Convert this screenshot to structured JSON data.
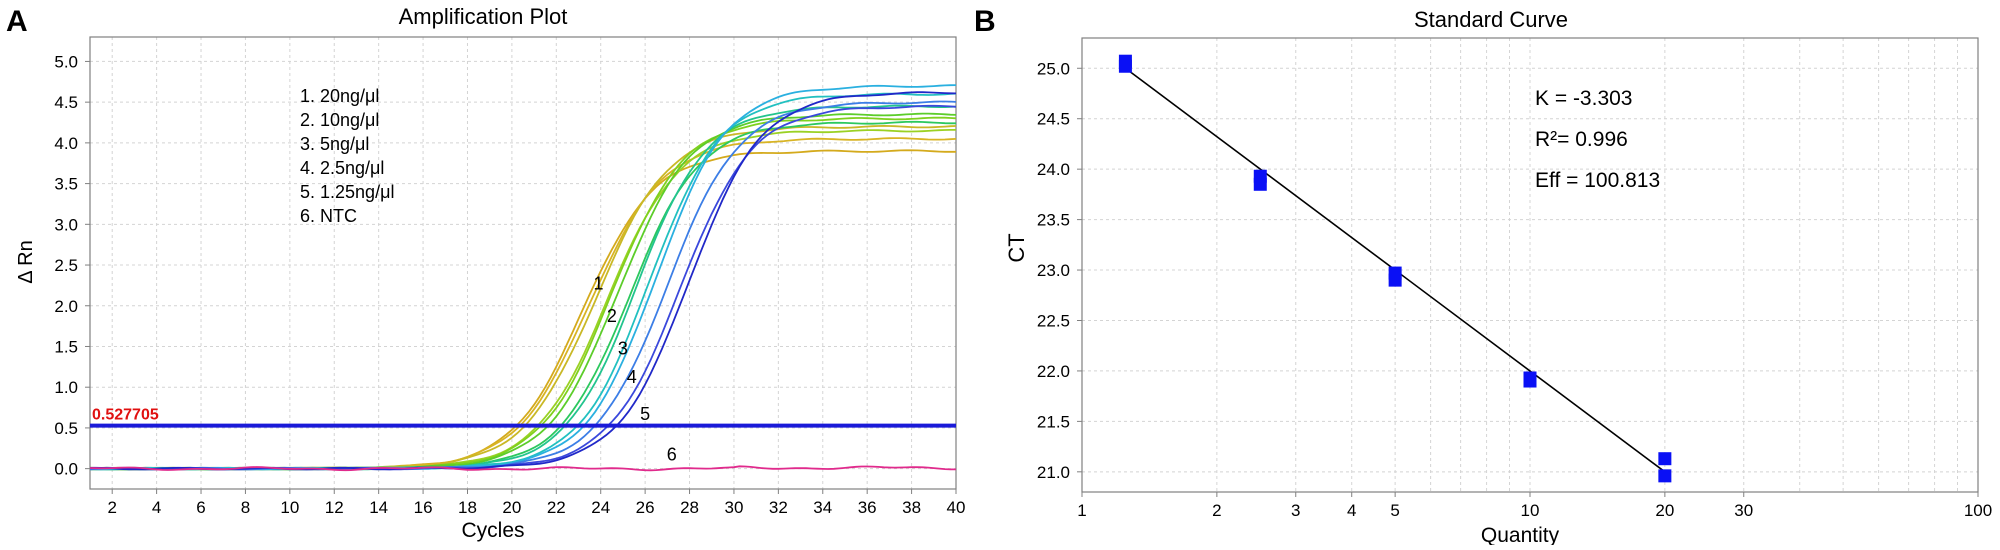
{
  "panel_labels": {
    "a": "A",
    "b": "B"
  },
  "colors": {
    "threshold": "#1a1ad8",
    "threshold_label": "#e01010",
    "ntc": "#e02a8c",
    "marker": "#0a10f5",
    "fit": "#000000",
    "grid": "#d4d4d4",
    "axis": "#808080"
  },
  "chart_data": [
    {
      "type": "line",
      "title": "Amplification Plot",
      "xlabel": "Cycles",
      "ylabel": "Δ Rn",
      "xlim": [
        1,
        40
      ],
      "ylim": [
        -0.25,
        5.3
      ],
      "xticks": [
        2,
        4,
        6,
        8,
        10,
        12,
        14,
        16,
        18,
        20,
        22,
        24,
        26,
        28,
        30,
        32,
        34,
        36,
        38,
        40
      ],
      "xtick_labels": [
        "2",
        "4",
        "6",
        "8",
        "10",
        "12",
        "14",
        "16",
        "18",
        "20",
        "22",
        "24",
        "26",
        "28",
        "30",
        "32",
        "34",
        "36",
        "38",
        "40"
      ],
      "yticks": [
        0,
        0.5,
        1,
        1.5,
        2,
        2.5,
        3,
        3.5,
        4,
        4.5,
        5
      ],
      "ytick_labels": [
        "0.0",
        "0.5",
        "1.0",
        "1.5",
        "2.0",
        "2.5",
        "3.0",
        "3.5",
        "4.0",
        "4.5",
        "5.0"
      ],
      "threshold": 0.527705,
      "threshold_label": "0.527705",
      "legend": [
        "1. 20ng/μl",
        "2. 10ng/μl",
        "3. 5ng/μl",
        "4. 2.5ng/μl",
        "5. 1.25ng/μl",
        "6. NTC"
      ],
      "series": [
        {
          "name": "1. 20ng/μl rep1",
          "color": "#d4aa1c",
          "plateau": 3.9,
          "midpoint": 23.2,
          "slope": 0.62
        },
        {
          "name": "1. 20ng/μl rep2",
          "color": "#d8b424",
          "plateau": 4.05,
          "midpoint": 23.5,
          "slope": 0.6
        },
        {
          "name": "1. 20ng/μl rep3",
          "color": "#c9b826",
          "plateau": 4.2,
          "midpoint": 23.8,
          "slope": 0.6
        },
        {
          "name": "2. 10ng/μl rep1",
          "color": "#9bd124",
          "plateau": 4.15,
          "midpoint": 24.3,
          "slope": 0.62
        },
        {
          "name": "2. 10ng/μl rep2",
          "color": "#7fd11e",
          "plateau": 4.3,
          "midpoint": 24.5,
          "slope": 0.62
        },
        {
          "name": "2. 10ng/μl rep3",
          "color": "#5ccd2a",
          "plateau": 4.35,
          "midpoint": 24.8,
          "slope": 0.62
        },
        {
          "name": "3. 5ng/μl rep1",
          "color": "#2cc85e",
          "plateau": 4.25,
          "midpoint": 25.3,
          "slope": 0.63
        },
        {
          "name": "3. 5ng/μl rep2",
          "color": "#22c48e",
          "plateau": 4.45,
          "midpoint": 25.6,
          "slope": 0.63
        },
        {
          "name": "4. 2.5ng/μl rep1",
          "color": "#22c0c0",
          "plateau": 4.6,
          "midpoint": 26.2,
          "slope": 0.63
        },
        {
          "name": "4. 2.5ng/μl rep2",
          "color": "#2ab0e0",
          "plateau": 4.7,
          "midpoint": 26.5,
          "slope": 0.63
        },
        {
          "name": "4. 2.5ng/μl rep3",
          "color": "#3c7ee6",
          "plateau": 4.5,
          "midpoint": 27.0,
          "slope": 0.62
        },
        {
          "name": "5. 1.25ng/μl rep1",
          "color": "#3a48dc",
          "plateau": 4.45,
          "midpoint": 27.6,
          "slope": 0.62
        },
        {
          "name": "5. 1.25ng/μl rep2",
          "color": "#2028c8",
          "plateau": 4.62,
          "midpoint": 28.0,
          "slope": 0.62
        },
        {
          "name": "6. NTC",
          "color": "#e02a8c",
          "plateau": 0,
          "midpoint": 0,
          "slope": 0
        }
      ],
      "curve_labels": [
        {
          "text": "1",
          "x": 23.9,
          "y": 2.2
        },
        {
          "text": "2",
          "x": 24.5,
          "y": 1.8
        },
        {
          "text": "3",
          "x": 25.0,
          "y": 1.4
        },
        {
          "text": "4",
          "x": 25.4,
          "y": 1.05
        },
        {
          "text": "5",
          "x": 26.0,
          "y": 0.6
        },
        {
          "text": "6",
          "x": 27.2,
          "y": 0.1
        }
      ]
    },
    {
      "type": "scatter",
      "title": "Standard Curve",
      "xlabel": "Quantity",
      "ylabel": "CT",
      "xscale": "log",
      "xlim": [
        1,
        100
      ],
      "ylim": [
        20.8,
        25.3
      ],
      "xticks": [
        1,
        2,
        3,
        4,
        5,
        10,
        20,
        30,
        100
      ],
      "xtick_labels": [
        "1",
        "2",
        "3",
        "4",
        "5",
        "10",
        "20",
        "30",
        "100"
      ],
      "yticks": [
        21.0,
        21.5,
        22.0,
        22.5,
        23.0,
        23.5,
        24.0,
        24.5,
        25.0
      ],
      "ytick_labels": [
        "21.0",
        "21.5",
        "22.0",
        "22.5",
        "23.0",
        "23.5",
        "24.0",
        "24.5",
        "25.0"
      ],
      "points": [
        {
          "x": 1.25,
          "y": 25.07
        },
        {
          "x": 1.25,
          "y": 25.02
        },
        {
          "x": 2.5,
          "y": 23.93
        },
        {
          "x": 2.5,
          "y": 23.85
        },
        {
          "x": 5,
          "y": 22.97
        },
        {
          "x": 5,
          "y": 22.9
        },
        {
          "x": 10,
          "y": 21.93
        },
        {
          "x": 10,
          "y": 21.9
        },
        {
          "x": 20,
          "y": 21.13
        },
        {
          "x": 20,
          "y": 20.96
        }
      ],
      "fit": {
        "x1": 1.25,
        "y1": 25.0,
        "x2": 20,
        "y2": 21.0
      },
      "annotations": {
        "k": "K = -3.303",
        "r2": "R²= 0.996",
        "eff": "Eff = 100.813"
      }
    }
  ]
}
